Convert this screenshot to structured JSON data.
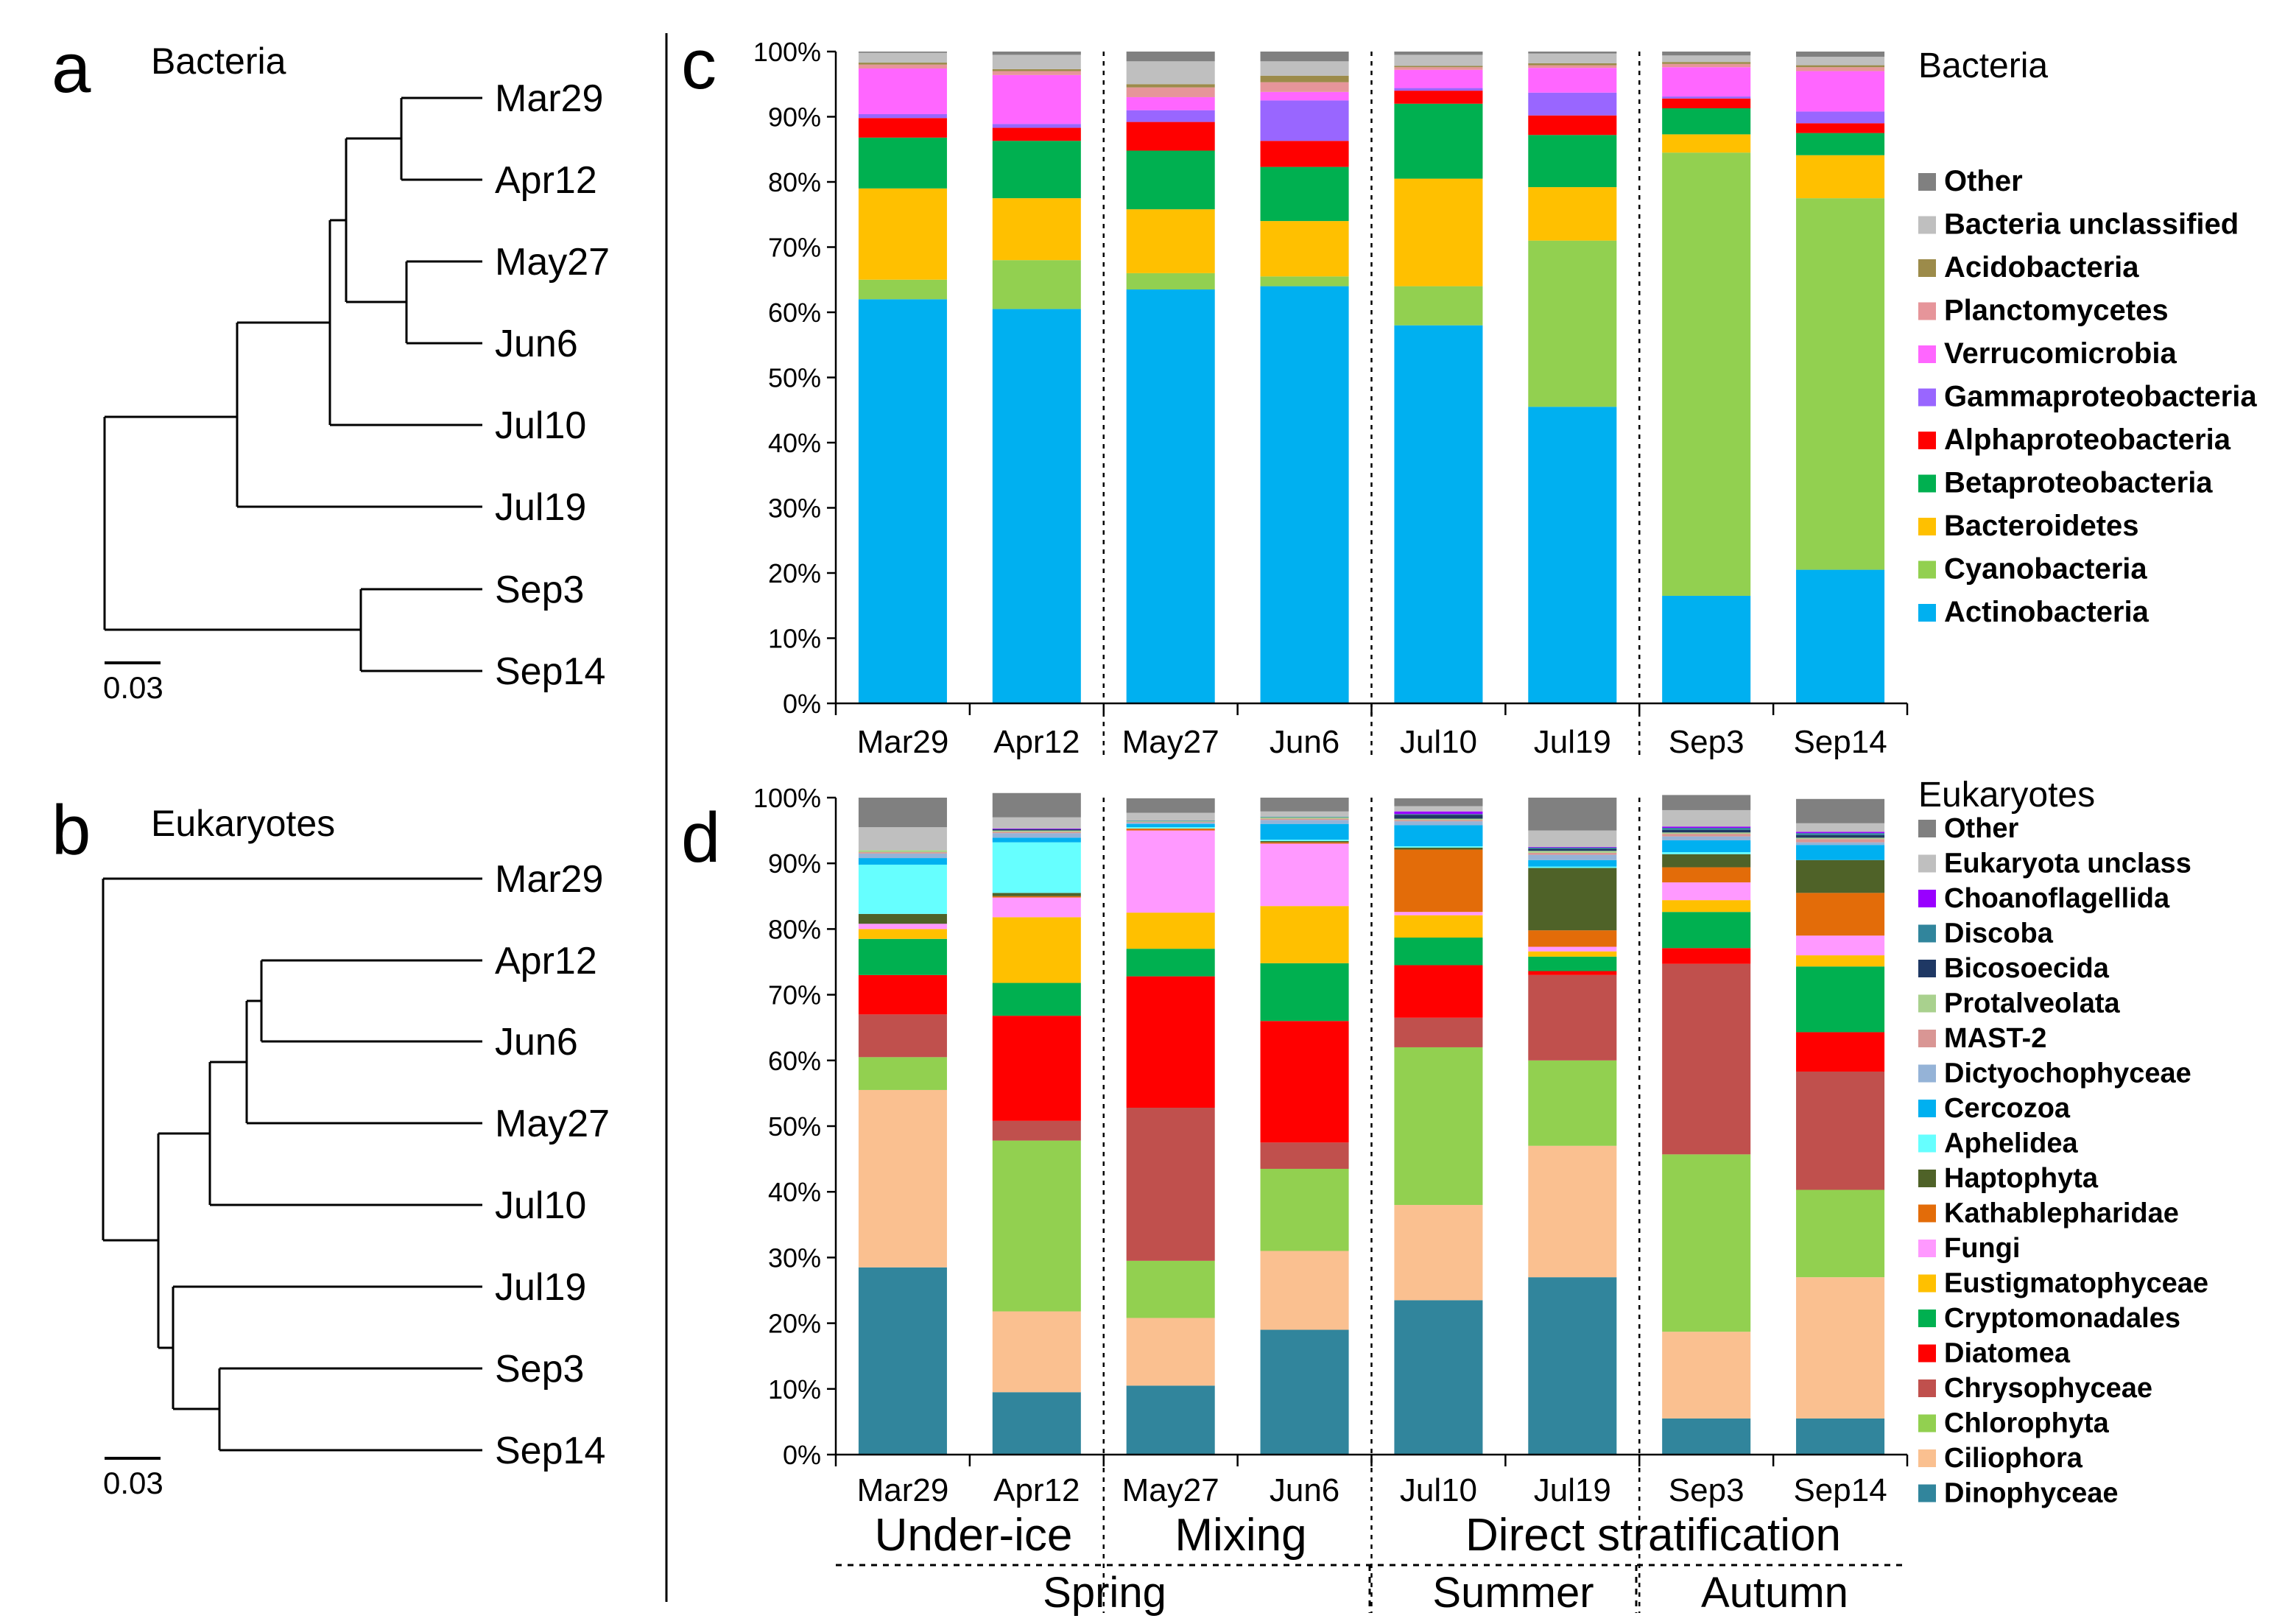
{
  "panels": {
    "a": {
      "letter": "a",
      "title": "Bacteria",
      "scale_label": "0.03"
    },
    "b": {
      "letter": "b",
      "title": "Eukaryotes",
      "scale_label": "0.03"
    },
    "c": {
      "letter": "c",
      "legend_title": "Bacteria"
    },
    "d": {
      "letter": "d",
      "legend_title": "Eukaryotes"
    }
  },
  "tree_a_leaves": [
    "Mar29",
    "Apr12",
    "May27",
    "Jun6",
    "Jul10",
    "Jul19",
    "Sep3",
    "Sep14"
  ],
  "tree_b_leaves": [
    "Mar29",
    "Apr12",
    "Jun6",
    "May27",
    "Jul10",
    "Jul19",
    "Sep3",
    "Sep14"
  ],
  "y_ticks": [
    "0%",
    "10%",
    "20%",
    "30%",
    "40%",
    "50%",
    "60%",
    "70%",
    "80%",
    "90%",
    "100%"
  ],
  "phases": [
    "Under-ice",
    "Mixing",
    "Direct stratification"
  ],
  "seasons": [
    "Spring",
    "Summer",
    "Autumn"
  ],
  "chart_data": [
    {
      "type": "bar",
      "stacked": true,
      "title": "Bacteria",
      "categories": [
        "Mar29",
        "Apr12",
        "May27",
        "Jun6",
        "Jul10",
        "Jul19",
        "Sep3",
        "Sep14"
      ],
      "ylim": [
        0,
        100
      ],
      "series": [
        {
          "name": "Actinobacteria",
          "color": "#00b0f0",
          "values": [
            62,
            60.5,
            63.5,
            64,
            58,
            45.5,
            16.5,
            20.5
          ]
        },
        {
          "name": "Cyanobacteria",
          "color": "#92d050",
          "values": [
            3,
            7.5,
            2.5,
            1.5,
            6,
            25.5,
            68,
            57
          ]
        },
        {
          "name": "Bacteroidetes",
          "color": "#ffc000",
          "values": [
            14,
            9.5,
            9.8,
            8.5,
            16.5,
            8.2,
            2.8,
            6.6
          ]
        },
        {
          "name": "Betaproteobacteria",
          "color": "#00b050",
          "values": [
            7.8,
            8.8,
            9,
            8.3,
            11.5,
            8,
            4,
            3.4
          ]
        },
        {
          "name": "Alphaproteobacteria",
          "color": "#ff0000",
          "values": [
            3,
            2,
            4.4,
            4,
            2,
            3,
            1.5,
            1.5
          ]
        },
        {
          "name": "Gammaproteobacteria",
          "color": "#9966ff",
          "values": [
            0.6,
            0.6,
            1.8,
            6.2,
            0.4,
            3.5,
            0.3,
            1.8
          ]
        },
        {
          "name": "Verrucomicrobia",
          "color": "#ff66ff",
          "values": [
            7,
            7.5,
            2,
            1.3,
            2.8,
            3.8,
            4.5,
            6.2
          ]
        },
        {
          "name": "Planctomycetes",
          "color": "#e6959a",
          "values": [
            0.6,
            0.6,
            1.5,
            1.5,
            0.4,
            0.4,
            0.5,
            0.6
          ]
        },
        {
          "name": "Acidobacteria",
          "color": "#9c8b4a",
          "values": [
            0.3,
            0.3,
            0.5,
            1,
            0.2,
            0.3,
            0.3,
            0.3
          ]
        },
        {
          "name": "Bacteria unclassified",
          "color": "#bfbfbf",
          "values": [
            1.5,
            2.2,
            3.5,
            2.2,
            1.7,
            1.5,
            1,
            1.3
          ]
        },
        {
          "name": "Other",
          "color": "#808080",
          "values": [
            0.2,
            0.5,
            1.5,
            1.5,
            0.5,
            0.3,
            0.6,
            0.8
          ]
        }
      ]
    },
    {
      "type": "bar",
      "stacked": true,
      "title": "Eukaryotes",
      "categories": [
        "Mar29",
        "Apr12",
        "May27",
        "Jun6",
        "Jul10",
        "Jul19",
        "Sep3",
        "Sep14"
      ],
      "ylim": [
        0,
        100
      ],
      "series": [
        {
          "name": "Dinophyceae",
          "color": "#31859c",
          "values": [
            28.5,
            9.5,
            10.5,
            19,
            23.5,
            27,
            5.5,
            5.5
          ]
        },
        {
          "name": "Ciliophora",
          "color": "#fac090",
          "values": [
            27,
            12.3,
            10.3,
            12,
            14.5,
            20,
            13.2,
            21.5
          ]
        },
        {
          "name": "Chlorophyta",
          "color": "#92d050",
          "values": [
            5,
            26,
            8.7,
            12.5,
            24,
            13,
            27,
            13.3
          ]
        },
        {
          "name": "Chrysophyceae",
          "color": "#c0504d",
          "values": [
            6.5,
            3,
            23.3,
            4,
            4.5,
            13,
            29,
            18
          ]
        },
        {
          "name": "Diatomea",
          "color": "#ff0000",
          "values": [
            6,
            16,
            20,
            18.5,
            8,
            0.6,
            2.4,
            6
          ]
        },
        {
          "name": "Cryptomonadales",
          "color": "#00b050",
          "values": [
            5.5,
            5,
            4.2,
            8.8,
            4.2,
            2.2,
            5.5,
            10
          ]
        },
        {
          "name": "Eustigmatophyceae",
          "color": "#ffc000",
          "values": [
            1.5,
            10,
            5.5,
            8.7,
            3.4,
            0.8,
            1.8,
            1.7
          ]
        },
        {
          "name": "Fungi",
          "color": "#ff99ff",
          "values": [
            0.8,
            3,
            12.5,
            9.5,
            0.5,
            0.7,
            2.7,
            3
          ]
        },
        {
          "name": "Kathablepharidae",
          "color": "#e36c09",
          "values": [
            0,
            0.2,
            0.3,
            0.2,
            9.5,
            2.5,
            2.3,
            6.5
          ]
        },
        {
          "name": "Haptophyta",
          "color": "#4f6228",
          "values": [
            1.5,
            0.5,
            0,
            0.2,
            0.3,
            9.5,
            2,
            5
          ]
        },
        {
          "name": "Aphelidea",
          "color": "#66ffff",
          "values": [
            7.5,
            7.7,
            0.2,
            0.2,
            0.2,
            0.2,
            0.3,
            0
          ]
        },
        {
          "name": "Cercozoa",
          "color": "#00b0f0",
          "values": [
            1,
            0.7,
            0.5,
            2.4,
            3.2,
            1,
            1.8,
            2.3
          ]
        },
        {
          "name": "Dictyochophyceae",
          "color": "#95b3d7",
          "values": [
            0.7,
            0.7,
            0.2,
            0.6,
            0.6,
            0.8,
            0.6,
            0.4
          ]
        },
        {
          "name": "MAST-2",
          "color": "#d99694",
          "values": [
            0.2,
            0.2,
            0.1,
            0.2,
            0.2,
            0.3,
            0.4,
            0.5
          ]
        },
        {
          "name": "Protalveolata",
          "color": "#a9d18e",
          "values": [
            0.3,
            0.2,
            0.1,
            0.2,
            0.2,
            0.3,
            0.2,
            0.2
          ]
        },
        {
          "name": "Bicosoecida",
          "color": "#1f3864",
          "values": [
            0,
            0.2,
            0,
            0,
            0.6,
            0.3,
            0.4,
            0.4
          ]
        },
        {
          "name": "Discoba",
          "color": "#31859c",
          "values": [
            0,
            0,
            0.1,
            0.1,
            0.1,
            0.2,
            0.3,
            0.3
          ]
        },
        {
          "name": "Choanoflagellida",
          "color": "#9900ff",
          "values": [
            0,
            0.1,
            0,
            0,
            0.4,
            0.1,
            0.2,
            0.2
          ]
        },
        {
          "name": "Eukaryota unclass",
          "color": "#bfbfbf",
          "values": [
            3.5,
            1.7,
            1.2,
            0.8,
            0.8,
            2.5,
            2.5,
            1.3
          ]
        },
        {
          "name": "Other",
          "color": "#808080",
          "values": [
            4.5,
            3.7,
            2.2,
            2.1,
            1.2,
            5,
            2.3,
            3.7
          ]
        }
      ]
    }
  ]
}
